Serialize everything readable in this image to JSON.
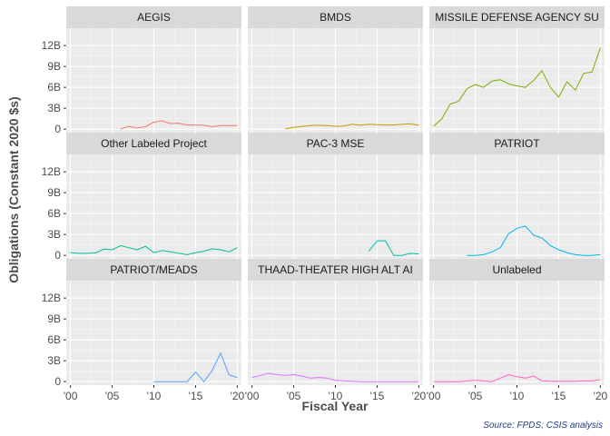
{
  "chart_data": {
    "type": "line",
    "facets": true,
    "xlabel": "Fiscal Year",
    "ylabel": "Obligations (Constant 2020 $s)",
    "caption": "Source: FPDS; CSIS analysis",
    "x_ticks": [
      2000,
      2005,
      2010,
      2015,
      2020
    ],
    "x_tick_labels": [
      "'00",
      "'05",
      "'10",
      "'15",
      "'20"
    ],
    "y_ticks": [
      0,
      3,
      6,
      9,
      12
    ],
    "y_tick_labels": [
      "0",
      "3B",
      "6B",
      "9B",
      "12B"
    ],
    "xlim": [
      1999.5,
      2020.5
    ],
    "ylim": [
      -0.5,
      14.5
    ],
    "y_unit": "billions",
    "grid": true,
    "series": [
      {
        "name": "AEGIS",
        "color": "#F8766D",
        "x": [
          2006,
          2007,
          2008,
          2009,
          2010,
          2011,
          2012,
          2013,
          2014,
          2015,
          2016,
          2017,
          2018,
          2019,
          2020
        ],
        "y": [
          0.0,
          0.4,
          0.15,
          0.35,
          1.0,
          1.2,
          0.8,
          0.85,
          0.6,
          0.6,
          0.55,
          0.35,
          0.5,
          0.5,
          0.5
        ]
      },
      {
        "name": "BMDS",
        "color": "#C49A00",
        "x": [
          2004,
          2005,
          2006,
          2007,
          2008,
          2009,
          2010,
          2011,
          2012,
          2013,
          2014,
          2015,
          2016,
          2017,
          2018,
          2019,
          2020
        ],
        "y": [
          0.05,
          0.25,
          0.4,
          0.5,
          0.55,
          0.5,
          0.4,
          0.45,
          0.7,
          0.55,
          0.7,
          0.65,
          0.6,
          0.6,
          0.7,
          0.75,
          0.55
        ]
      },
      {
        "name": "MISSILE DEFENSE AGENCY SU",
        "color": "#53B400",
        "x": [
          2000,
          2001,
          2002,
          2003,
          2004,
          2005,
          2006,
          2007,
          2008,
          2009,
          2010,
          2011,
          2012,
          2013,
          2014,
          2015,
          2016,
          2017,
          2018,
          2019,
          2020
        ],
        "y": [
          0.4,
          1.5,
          3.6,
          4.0,
          5.8,
          6.4,
          6.0,
          6.9,
          7.1,
          6.5,
          6.2,
          6.0,
          7.0,
          8.4,
          6.0,
          4.6,
          6.8,
          5.6,
          8.0,
          8.2,
          11.7
        ],
        "line_color": "#7CAE00"
      },
      {
        "name": "Other Labeled Project",
        "color": "#00C094",
        "x": [
          2000,
          2001,
          2002,
          2003,
          2004,
          2005,
          2006,
          2007,
          2008,
          2009,
          2010,
          2011,
          2012,
          2013,
          2014,
          2015,
          2016,
          2017,
          2018,
          2019,
          2020
        ],
        "y": [
          0.4,
          0.3,
          0.3,
          0.35,
          0.9,
          0.8,
          1.4,
          1.1,
          0.8,
          1.3,
          0.4,
          0.7,
          0.5,
          0.3,
          0.1,
          0.4,
          0.6,
          0.95,
          0.8,
          0.5,
          1.1
        ]
      },
      {
        "name": "PAC-3 MSE",
        "color": "#00B6EB",
        "x": [
          2014,
          2015,
          2016,
          2017,
          2018,
          2019,
          2020
        ],
        "y": [
          0.6,
          2.1,
          2.1,
          0.0,
          0.0,
          0.3,
          0.2
        ],
        "line_color": "#00BBA0"
      },
      {
        "name": "PATRIOT",
        "color": "#00B6EB",
        "x": [
          2004,
          2005,
          2006,
          2007,
          2008,
          2009,
          2010,
          2011,
          2012,
          2013,
          2014,
          2015,
          2016,
          2017,
          2018,
          2019,
          2020
        ],
        "y": [
          0.0,
          0.0,
          0.1,
          0.5,
          1.1,
          3.1,
          3.9,
          4.2,
          2.9,
          2.5,
          1.4,
          0.8,
          0.4,
          0.1,
          0.0,
          0.0,
          0.1
        ]
      },
      {
        "name": "PATRIOT/MEADS",
        "color": "#619CFF",
        "x": [
          2010,
          2011,
          2012,
          2013,
          2014,
          2015,
          2016,
          2017,
          2018,
          2019,
          2020
        ],
        "y": [
          0.0,
          0.0,
          0.0,
          0.0,
          0.0,
          1.4,
          0.0,
          1.6,
          4.1,
          1.0,
          0.6
        ],
        "line_color": "#529EFF"
      },
      {
        "name": "THAAD-THEATER HIGH ALT AI",
        "color": "#DB72FB",
        "x": [
          2000,
          2001,
          2002,
          2003,
          2004,
          2005,
          2006,
          2007,
          2008,
          2009,
          2010,
          2011,
          2012,
          2013,
          2014,
          2015,
          2016,
          2017,
          2018,
          2019,
          2020
        ],
        "y": [
          0.6,
          0.9,
          1.2,
          1.0,
          0.9,
          1.0,
          0.8,
          0.5,
          0.6,
          0.5,
          0.2,
          0.1,
          0.05,
          0.0,
          0.0,
          0.0,
          0.0,
          0.0,
          0.0,
          0.0,
          0.0
        ]
      },
      {
        "name": "Unlabeled",
        "color": "#FF61C3",
        "x": [
          2000,
          2001,
          2002,
          2003,
          2004,
          2005,
          2006,
          2007,
          2008,
          2009,
          2010,
          2011,
          2012,
          2013,
          2014,
          2015,
          2016,
          2017,
          2018,
          2019,
          2020
        ],
        "y": [
          0.0,
          0.0,
          0.0,
          0.0,
          0.1,
          0.2,
          0.1,
          0.0,
          0.5,
          1.0,
          0.7,
          0.5,
          0.8,
          0.1,
          0.05,
          0.05,
          0.05,
          0.05,
          0.1,
          0.1,
          0.3
        ]
      }
    ]
  }
}
